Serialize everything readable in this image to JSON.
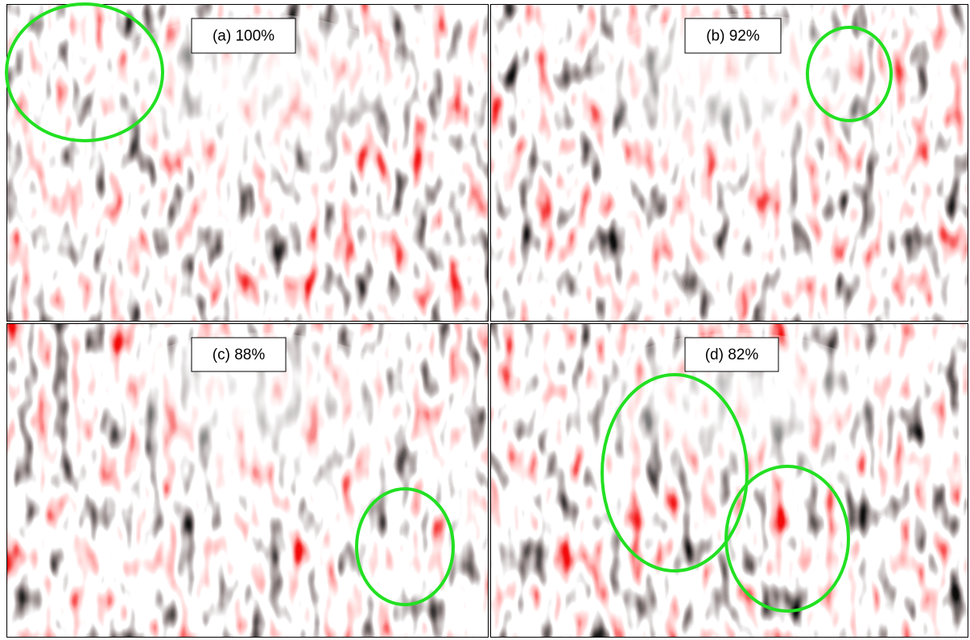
{
  "panels": [
    {
      "label": "(a) 100%"
    },
    {
      "label": "(b) 92%"
    },
    {
      "label": "(c) 88%"
    },
    {
      "label": "(d) 82%"
    }
  ]
}
